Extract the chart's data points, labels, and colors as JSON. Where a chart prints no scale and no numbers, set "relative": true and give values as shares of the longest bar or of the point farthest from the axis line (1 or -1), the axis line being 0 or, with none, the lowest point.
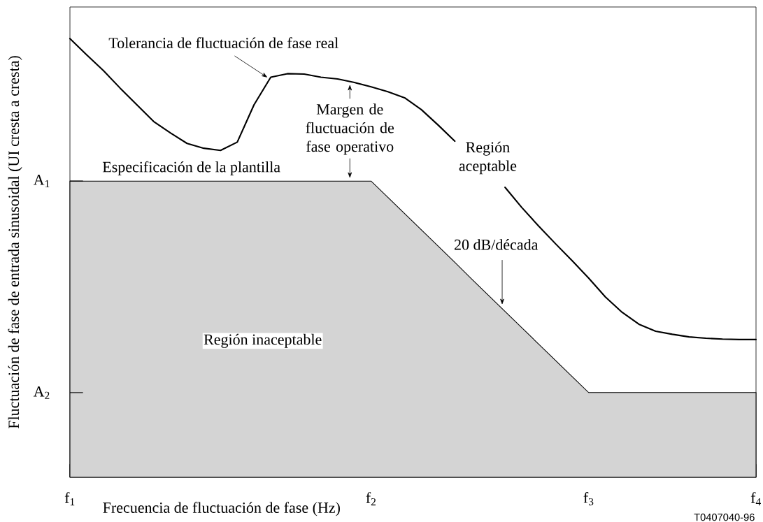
{
  "chart_data": {
    "type": "line",
    "relative": true,
    "xlabel": "Frecuencia de fluctuación de fase (Hz)",
    "ylabel": "Fluctuación de fase de entrada sinusoidal (UI cresta a cresta)",
    "categories": [
      "f$_{1}$",
      null,
      null,
      null,
      null,
      null,
      null,
      null,
      null,
      null,
      null,
      null,
      null,
      null,
      null,
      null,
      null,
      null,
      "f$_{2}$",
      null,
      null,
      null,
      null,
      null,
      null,
      null,
      null,
      null,
      null,
      null,
      null,
      "f$_{3}$",
      null,
      null,
      null,
      null,
      null,
      null,
      null,
      null,
      null,
      "f$_{4}$"
    ],
    "series": [
      {
        "type": "area",
        "color": "#d4d4d4",
        "values": [
          0.675,
          0.675,
          0.675,
          0.675,
          0.675,
          0.675,
          0.675,
          0.675,
          0.675,
          0.675,
          0.675,
          0.675,
          0.675,
          0.675,
          0.675,
          0.675,
          0.675,
          0.675,
          0.675,
          0.638,
          0.601,
          0.564,
          0.527,
          0.49,
          0.452,
          0.415,
          0.378,
          0.341,
          0.304,
          0.267,
          0.23,
          0.193,
          0.193,
          0.193,
          0.193,
          0.193,
          0.193,
          0.193,
          0.193,
          0.193,
          0.193,
          0.193
        ]
      },
      {
        "color": "#000000",
        "values": [
          1,
          0.963,
          0.927,
          0.887,
          0.849,
          0.811,
          0.785,
          0.761,
          0.75,
          0.745,
          0.764,
          0.849,
          0.912,
          0.92,
          0.919,
          0.912,
          0.908,
          0.9,
          0.89,
          0.879,
          0.865,
          0.838,
          0.803,
          0.766,
          null,
          null,
          0.661,
          0.615,
          0.573,
          0.533,
          0.494,
          0.454,
          0.411,
          0.376,
          0.349,
          0.333,
          0.326,
          0.32,
          0.317,
          0.315,
          0.314,
          0.314
        ]
      }
    ],
    "annotations": [
      "Tolerancia de fluctuación de fase real",
      "Margen de fluctuación de fase operativo",
      "Especificación de la plantilla",
      "Región aceptable",
      "20 dB/década",
      "Región inaceptable",
      "T0407040-96",
      "A$_{1}$",
      "A$_{2}$"
    ]
  }
}
